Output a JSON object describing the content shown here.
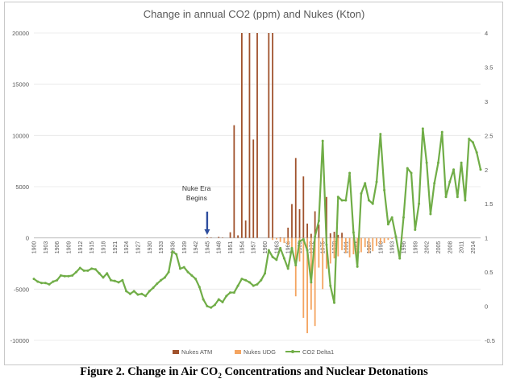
{
  "caption": {
    "pre": "Figure 2. Change in Air CO",
    "sub": "2",
    "post": " Concentrations and Nuclear Detonations"
  },
  "chart_data": {
    "type": "bar+line",
    "title": "Change in annual CO2 (ppm) and Nukes (Kton)",
    "left_axis": {
      "min": -10000,
      "max": 20000,
      "ticks": [
        -10000,
        -5000,
        0,
        5000,
        10000,
        15000,
        20000
      ]
    },
    "right_axis": {
      "min": -0.5,
      "max": 4,
      "ticks": [
        "-0.5",
        "0",
        "0.5",
        "1",
        "1.5",
        "2",
        "2.5",
        "3",
        "3.5",
        "4"
      ]
    },
    "x_tick_labels": [
      "1900",
      "1903",
      "1906",
      "1909",
      "1912",
      "1915",
      "1918",
      "1921",
      "1924",
      "1927",
      "1930",
      "1933",
      "1936",
      "1939",
      "1942",
      "1945",
      "1948",
      "1951",
      "1954",
      "1957",
      "1960",
      "1963",
      "1966",
      "1969",
      "1972",
      "1975",
      "1978",
      "1981",
      "1984",
      "1987",
      "1990",
      "1993",
      "1996",
      "1999",
      "2002",
      "2005",
      "2008",
      "2011",
      "2014"
    ],
    "x_range": [
      1900,
      2016
    ],
    "annotation": {
      "line1": "Nuke Era",
      "line2": "Begins",
      "year": 1945
    },
    "legend": [
      {
        "label": "Nukes ATM",
        "color": "#a0522d"
      },
      {
        "label": "Nukes UDG",
        "color": "#f4a460"
      },
      {
        "label": "CO2 Delta1",
        "color": "#70ad47"
      }
    ],
    "series": [
      {
        "name": "Nukes ATM",
        "axis": "left",
        "color": "#a0522d",
        "points": [
          [
            1945,
            60
          ],
          [
            1946,
            40
          ],
          [
            1948,
            100
          ],
          [
            1949,
            40
          ],
          [
            1951,
            550
          ],
          [
            1952,
            11000
          ],
          [
            1953,
            250
          ],
          [
            1954,
            20000
          ],
          [
            1955,
            1700
          ],
          [
            1956,
            20000
          ],
          [
            1957,
            9600
          ],
          [
            1958,
            20000
          ],
          [
            1961,
            20000
          ],
          [
            1962,
            20000
          ],
          [
            1964,
            60
          ],
          [
            1965,
            20
          ],
          [
            1966,
            1000
          ],
          [
            1967,
            3300
          ],
          [
            1968,
            7800
          ],
          [
            1969,
            2800
          ],
          [
            1970,
            6000
          ],
          [
            1971,
            1400
          ],
          [
            1972,
            400
          ],
          [
            1973,
            2600
          ],
          [
            1974,
            1300
          ],
          [
            1976,
            4000
          ],
          [
            1977,
            450
          ],
          [
            1978,
            600
          ],
          [
            1979,
            300
          ],
          [
            1980,
            500
          ]
        ]
      },
      {
        "name": "Nukes UDG",
        "axis": "left",
        "color": "#f4a460",
        "points": [
          [
            1962,
            -200
          ],
          [
            1963,
            -150
          ],
          [
            1964,
            -400
          ],
          [
            1965,
            -500
          ],
          [
            1966,
            -700
          ],
          [
            1967,
            -1200
          ],
          [
            1968,
            -5700
          ],
          [
            1969,
            -2300
          ],
          [
            1970,
            -7800
          ],
          [
            1971,
            -9300
          ],
          [
            1972,
            -7000
          ],
          [
            1973,
            -8600
          ],
          [
            1974,
            -2900
          ],
          [
            1975,
            -5000
          ],
          [
            1976,
            -3000
          ],
          [
            1977,
            -2500
          ],
          [
            1978,
            -2000
          ],
          [
            1979,
            -1800
          ],
          [
            1980,
            -1200
          ],
          [
            1981,
            -1500
          ],
          [
            1982,
            -1900
          ],
          [
            1983,
            -1600
          ],
          [
            1984,
            -2200
          ],
          [
            1985,
            -1400
          ],
          [
            1986,
            -900
          ],
          [
            1987,
            -1500
          ],
          [
            1988,
            -1300
          ],
          [
            1989,
            -800
          ],
          [
            1990,
            -600
          ],
          [
            1991,
            -500
          ],
          [
            1992,
            -200
          ],
          [
            1993,
            -100
          ],
          [
            1996,
            -50
          ]
        ]
      },
      {
        "name": "CO2 Delta1",
        "axis": "right",
        "color": "#70ad47",
        "points": [
          [
            1900,
            0.4
          ],
          [
            1901,
            0.36
          ],
          [
            1902,
            0.34
          ],
          [
            1903,
            0.34
          ],
          [
            1904,
            0.32
          ],
          [
            1905,
            0.36
          ],
          [
            1906,
            0.38
          ],
          [
            1907,
            0.45
          ],
          [
            1908,
            0.44
          ],
          [
            1909,
            0.44
          ],
          [
            1910,
            0.45
          ],
          [
            1911,
            0.5
          ],
          [
            1912,
            0.56
          ],
          [
            1913,
            0.52
          ],
          [
            1914,
            0.52
          ],
          [
            1915,
            0.55
          ],
          [
            1916,
            0.54
          ],
          [
            1917,
            0.48
          ],
          [
            1918,
            0.42
          ],
          [
            1919,
            0.48
          ],
          [
            1920,
            0.38
          ],
          [
            1921,
            0.37
          ],
          [
            1922,
            0.35
          ],
          [
            1923,
            0.38
          ],
          [
            1924,
            0.22
          ],
          [
            1925,
            0.18
          ],
          [
            1926,
            0.22
          ],
          [
            1927,
            0.17
          ],
          [
            1928,
            0.18
          ],
          [
            1929,
            0.15
          ],
          [
            1930,
            0.22
          ],
          [
            1931,
            0.27
          ],
          [
            1932,
            0.33
          ],
          [
            1933,
            0.38
          ],
          [
            1934,
            0.42
          ],
          [
            1935,
            0.5
          ],
          [
            1936,
            0.8
          ],
          [
            1937,
            0.76
          ],
          [
            1938,
            0.55
          ],
          [
            1939,
            0.57
          ],
          [
            1940,
            0.5
          ],
          [
            1941,
            0.45
          ],
          [
            1942,
            0.4
          ],
          [
            1943,
            0.28
          ],
          [
            1944,
            0.1
          ],
          [
            1945,
            0.0
          ],
          [
            1946,
            -0.02
          ],
          [
            1947,
            0.02
          ],
          [
            1948,
            0.1
          ],
          [
            1949,
            0.06
          ],
          [
            1950,
            0.15
          ],
          [
            1951,
            0.2
          ],
          [
            1952,
            0.2
          ],
          [
            1953,
            0.3
          ],
          [
            1954,
            0.4
          ],
          [
            1955,
            0.38
          ],
          [
            1956,
            0.35
          ],
          [
            1957,
            0.3
          ],
          [
            1958,
            0.32
          ],
          [
            1959,
            0.38
          ],
          [
            1960,
            0.48
          ],
          [
            1961,
            0.82
          ],
          [
            1962,
            0.72
          ],
          [
            1963,
            0.68
          ],
          [
            1964,
            0.85
          ],
          [
            1965,
            0.7
          ],
          [
            1966,
            0.55
          ],
          [
            1967,
            0.85
          ],
          [
            1968,
            0.6
          ],
          [
            1969,
            0.95
          ],
          [
            1970,
            0.98
          ],
          [
            1971,
            0.82
          ],
          [
            1972,
            0.35
          ],
          [
            1973,
            1.02
          ],
          [
            1974,
            1.25
          ],
          [
            1975,
            2.42
          ],
          [
            1976,
            0.9
          ],
          [
            1977,
            0.3
          ],
          [
            1978,
            0.05
          ],
          [
            1979,
            1.6
          ],
          [
            1980,
            1.55
          ],
          [
            1981,
            1.55
          ],
          [
            1982,
            1.95
          ],
          [
            1983,
            1.08
          ],
          [
            1984,
            0.58
          ],
          [
            1985,
            1.65
          ],
          [
            1986,
            1.8
          ],
          [
            1987,
            1.55
          ],
          [
            1988,
            1.5
          ],
          [
            1989,
            1.82
          ],
          [
            1990,
            2.52
          ],
          [
            1991,
            1.7
          ],
          [
            1992,
            1.2
          ],
          [
            1993,
            1.3
          ],
          [
            1994,
            1.02
          ],
          [
            1995,
            0.7
          ],
          [
            1996,
            1.3
          ],
          [
            1997,
            2.02
          ],
          [
            1998,
            1.95
          ],
          [
            1999,
            1.12
          ],
          [
            2000,
            1.5
          ],
          [
            2001,
            2.6
          ],
          [
            2002,
            2.1
          ],
          [
            2003,
            1.35
          ],
          [
            2004,
            1.8
          ],
          [
            2005,
            2.1
          ],
          [
            2006,
            2.55
          ],
          [
            2007,
            1.6
          ],
          [
            2008,
            1.82
          ],
          [
            2009,
            2.0
          ],
          [
            2010,
            1.6
          ],
          [
            2011,
            2.1
          ],
          [
            2012,
            1.55
          ],
          [
            2013,
            2.45
          ],
          [
            2014,
            2.4
          ],
          [
            2015,
            2.25
          ],
          [
            2016,
            2.0
          ]
        ]
      }
    ]
  }
}
